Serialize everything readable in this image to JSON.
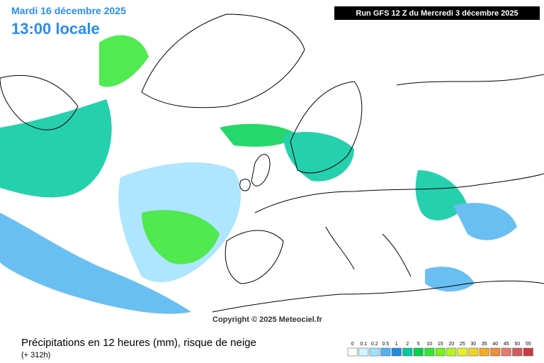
{
  "header": {
    "date": "Mardi 16 décembre 2025",
    "time": "13:00 locale",
    "run": "Run GFS 12 Z du Mercredi 3 décembre 2025"
  },
  "copyright": "Copyright © 2025 Meteociel.fr",
  "footer": {
    "title": "Précipitations en 12 heures (mm), risque de neige",
    "lead": "(+ 312h)"
  },
  "legend": {
    "labels": [
      "0",
      "0.1",
      "0.2",
      "0.5",
      "1",
      "2",
      "5",
      "10",
      "15",
      "20",
      "25",
      "30",
      "35",
      "40",
      "45",
      "50",
      "55"
    ],
    "colors": [
      "#ffffff",
      "#d2f5ff",
      "#a0e1ff",
      "#50b4f0",
      "#1e8cdc",
      "#00c8a0",
      "#00d250",
      "#32e632",
      "#78f01e",
      "#b4f51e",
      "#e6f028",
      "#f0d228",
      "#f5aa28",
      "#f08c3c",
      "#e6786e",
      "#d25a5a",
      "#c83c3c"
    ]
  }
}
